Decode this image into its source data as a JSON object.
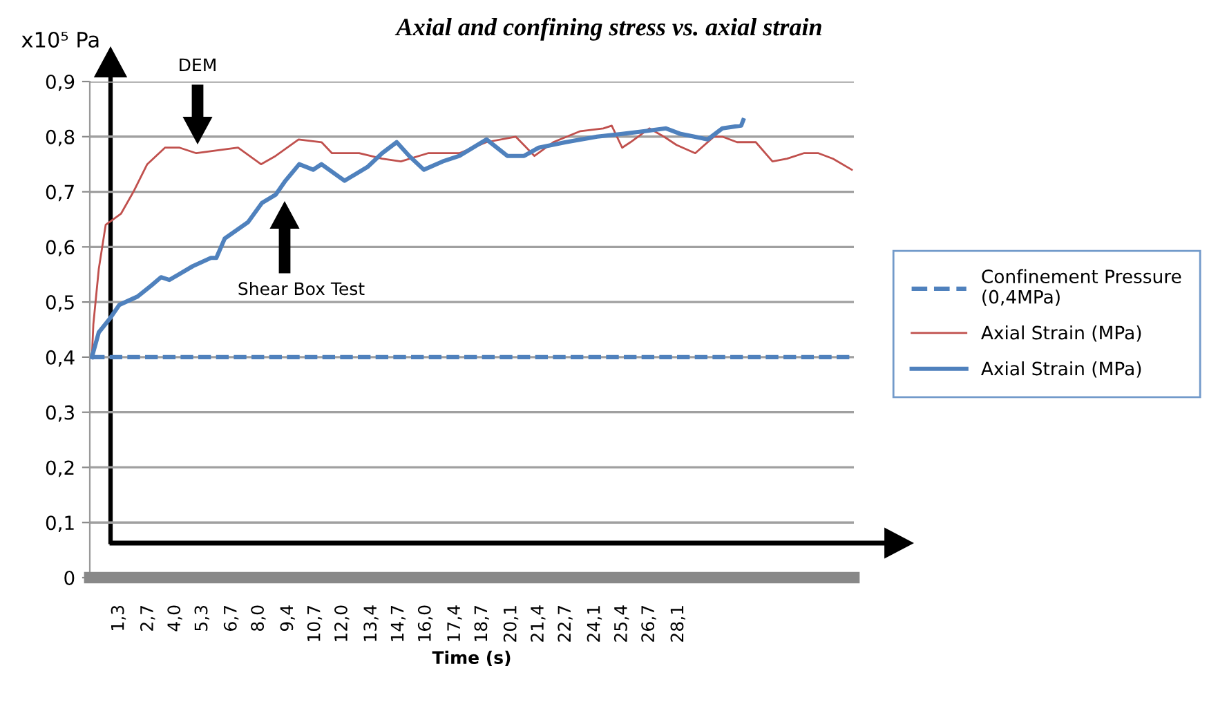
{
  "chart_data": {
    "type": "line",
    "title": "Axial and confining stress vs. axial strain",
    "xlabel": "Time (s)",
    "ylabel": "x10⁵ Pa",
    "xlim": [
      -0.1,
      36.5
    ],
    "ylim": [
      0,
      0.9
    ],
    "xticks": [
      {
        "value": 1.3,
        "label": "1,3"
      },
      {
        "value": 2.7,
        "label": "2,7"
      },
      {
        "value": 4.0,
        "label": "4,0"
      },
      {
        "value": 5.3,
        "label": "5,3"
      },
      {
        "value": 6.7,
        "label": "6,7"
      },
      {
        "value": 8.0,
        "label": "8,0"
      },
      {
        "value": 9.4,
        "label": "9,4"
      },
      {
        "value": 10.7,
        "label": "10,7"
      },
      {
        "value": 12.0,
        "label": "12,0"
      },
      {
        "value": 13.4,
        "label": "13,4"
      },
      {
        "value": 14.7,
        "label": "14,7"
      },
      {
        "value": 16.0,
        "label": "16,0"
      },
      {
        "value": 17.4,
        "label": "17,4"
      },
      {
        "value": 18.7,
        "label": "18,7"
      },
      {
        "value": 20.1,
        "label": "20,1"
      },
      {
        "value": 21.4,
        "label": "21,4"
      },
      {
        "value": 22.7,
        "label": "22,7"
      },
      {
        "value": 24.1,
        "label": "24,1"
      },
      {
        "value": 25.4,
        "label": "25,4"
      },
      {
        "value": 26.7,
        "label": "26,7"
      },
      {
        "value": 28.1,
        "label": "28,1"
      }
    ],
    "yticks": [
      {
        "value": 0,
        "label": "0"
      },
      {
        "value": 0.1,
        "label": "0,1"
      },
      {
        "value": 0.2,
        "label": "0,2"
      },
      {
        "value": 0.3,
        "label": "0,3"
      },
      {
        "value": 0.4,
        "label": "0,4"
      },
      {
        "value": 0.5,
        "label": "0,5"
      },
      {
        "value": 0.6,
        "label": "0,6"
      },
      {
        "value": 0.7,
        "label": "0,7"
      },
      {
        "value": 0.8,
        "label": "0,8"
      },
      {
        "value": 0.9,
        "label": "0,9"
      }
    ],
    "grid": "y",
    "legend": "right",
    "series": [
      {
        "name": "Confinement Pressure\n(0,4MPa)",
        "color": "#4f81bd",
        "line_style": "dashed",
        "x": [
          0,
          36.4
        ],
        "values": [
          0.4,
          0.4
        ]
      },
      {
        "name": "Axial Strain (MPa)",
        "color": "#c0504d",
        "x": [
          0.0,
          0.07,
          0.33,
          0.66,
          1.39,
          1.99,
          2.65,
          3.5,
          4.2,
          5.0,
          7.0,
          8.1,
          8.8,
          9.9,
          11.0,
          11.5,
          12.8,
          13.9,
          14.8,
          16.1,
          17.6,
          18.9,
          20.3,
          21.2,
          22.1,
          23.4,
          24.5,
          24.9,
          25.4,
          25.8,
          26.7,
          27.4,
          28.0,
          28.9,
          29.8,
          30.2,
          30.9,
          31.8,
          32.6,
          33.3,
          34.1,
          34.8,
          35.5,
          36.4
        ],
        "values": [
          0.4,
          0.46,
          0.56,
          0.64,
          0.66,
          0.7,
          0.75,
          0.78,
          0.78,
          0.77,
          0.78,
          0.75,
          0.765,
          0.795,
          0.79,
          0.77,
          0.77,
          0.76,
          0.755,
          0.77,
          0.77,
          0.79,
          0.8,
          0.765,
          0.79,
          0.81,
          0.815,
          0.82,
          0.78,
          0.79,
          0.815,
          0.8,
          0.785,
          0.77,
          0.8,
          0.8,
          0.79,
          0.79,
          0.755,
          0.76,
          0.77,
          0.77,
          0.76,
          0.74
        ]
      },
      {
        "name": "Axial Strain (MPa)",
        "color": "#4f81bd",
        "x": [
          0.0,
          0.33,
          0.86,
          1.32,
          2.19,
          2.85,
          3.31,
          3.71,
          4.83,
          5.7,
          5.96,
          6.36,
          7.48,
          8.15,
          8.81,
          9.27,
          9.93,
          10.6,
          11.0,
          12.1,
          13.2,
          13.9,
          14.6,
          15.2,
          15.9,
          16.8,
          17.6,
          18.9,
          19.9,
          20.7,
          21.4,
          22.7,
          24.2,
          25.4,
          26.5,
          27.5,
          28.2,
          29.5,
          30.2,
          31.1,
          31.2
        ],
        "values": [
          0.4,
          0.445,
          0.47,
          0.495,
          0.51,
          0.53,
          0.545,
          0.54,
          0.565,
          0.58,
          0.58,
          0.615,
          0.645,
          0.68,
          0.695,
          0.72,
          0.75,
          0.74,
          0.75,
          0.72,
          0.745,
          0.77,
          0.79,
          0.765,
          0.74,
          0.755,
          0.765,
          0.795,
          0.765,
          0.765,
          0.78,
          0.79,
          0.8,
          0.805,
          0.81,
          0.815,
          0.805,
          0.795,
          0.815,
          0.82,
          0.83
        ]
      }
    ],
    "annotations": [
      "DEM",
      "Shear Box Test"
    ]
  }
}
